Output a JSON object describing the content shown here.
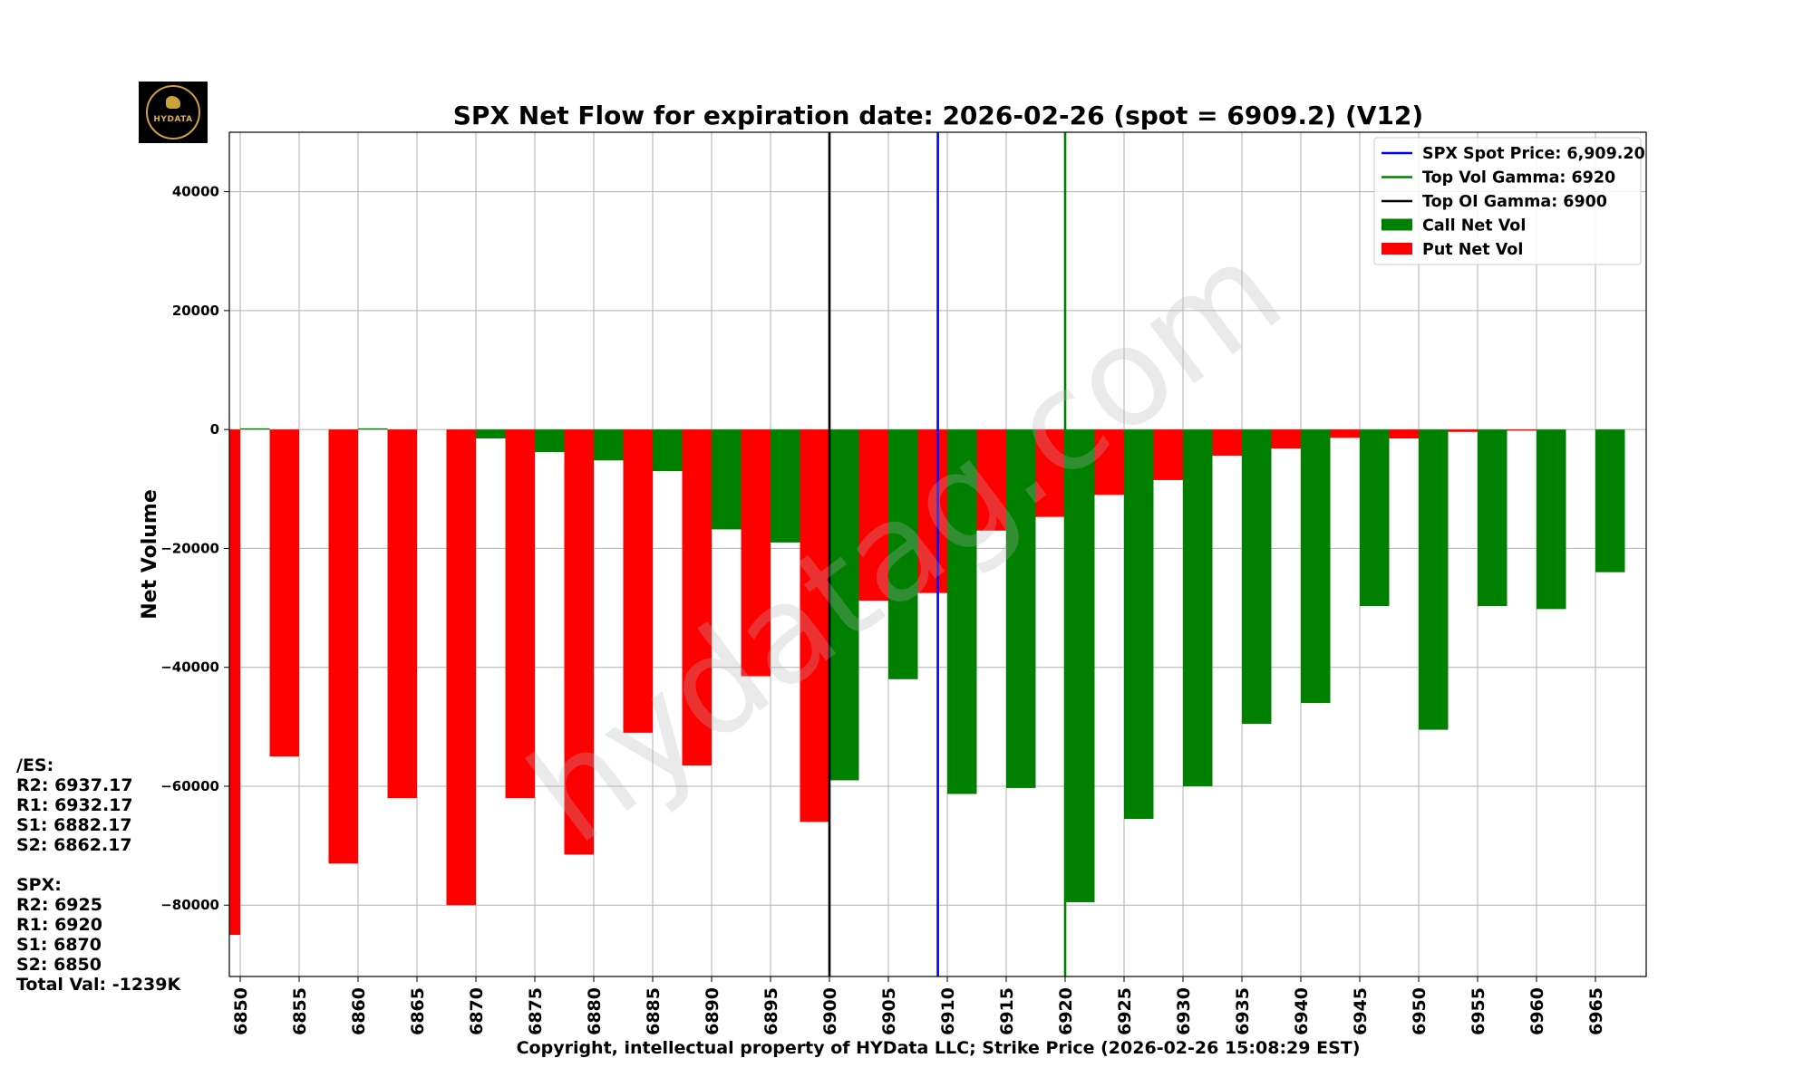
{
  "chart_data": {
    "type": "bar",
    "title": "SPX Net Flow for expiration date: 2026-02-26 (spot = 6909.2) (V12)",
    "xlabel": "Copyright, intellectual property of HYData LLC; Strike Price (2026-02-26 15:08:29 EST)",
    "ylabel": "Net Volume",
    "ylim": [
      -92000,
      50000
    ],
    "yticks": [
      40000,
      20000,
      0,
      -20000,
      -40000,
      -60000,
      -80000
    ],
    "ytick_labels": [
      "40000",
      "20000",
      "0",
      "−20000",
      "−40000",
      "−60000",
      "−80000"
    ],
    "categories": [
      "6850",
      "6855",
      "6860",
      "6865",
      "6870",
      "6875",
      "6880",
      "6885",
      "6890",
      "6895",
      "6900",
      "6905",
      "6910",
      "6915",
      "6920",
      "6925",
      "6930",
      "6935",
      "6940",
      "6945",
      "6950",
      "6955",
      "6960",
      "6965"
    ],
    "series": [
      {
        "name": "Put Net Vol",
        "color": "#ff0000",
        "values": [
          -85000,
          -55000,
          -73000,
          -62000,
          -80000,
          -62000,
          -71500,
          -51000,
          -56500,
          -41500,
          -66000,
          -28800,
          -27500,
          -17000,
          -14700,
          -11000,
          -8500,
          -4400,
          -3200,
          -1400,
          -1500,
          -400,
          -200,
          0
        ]
      },
      {
        "name": "Call Net Vol",
        "color": "#008000",
        "values": [
          200,
          0,
          200,
          0,
          -1500,
          -3800,
          -5200,
          -7000,
          -16800,
          -19000,
          -59000,
          -42000,
          -61300,
          -60300,
          -79500,
          -65500,
          -60000,
          -49500,
          -46000,
          -29700,
          -50500,
          -29700,
          -30200,
          -24000
        ]
      }
    ],
    "vlines": [
      {
        "label": "SPX Spot Price: 6,909.20",
        "value": 6909.2,
        "color": "#0000ff"
      },
      {
        "label": "Top Vol Gamma: 6920",
        "value": 6920,
        "color": "#008000"
      },
      {
        "label": "Top OI Gamma: 6900",
        "value": 6900,
        "color": "#000000"
      }
    ],
    "legend": {
      "position": "top-right",
      "entries": [
        {
          "label": "SPX Spot Price: 6,909.20",
          "kind": "line",
          "color": "#0000ff"
        },
        {
          "label": "Top Vol Gamma: 6920",
          "kind": "line",
          "color": "#008000"
        },
        {
          "label": "Top OI Gamma: 6900",
          "kind": "line",
          "color": "#000000"
        },
        {
          "label": "Call Net Vol",
          "kind": "patch",
          "color": "#008000"
        },
        {
          "label": "Put Net Vol",
          "kind": "patch",
          "color": "#ff0000"
        }
      ]
    },
    "watermark": "hydatag.com",
    "grid": true
  },
  "logo": {
    "text": "HYDATA"
  },
  "levels": {
    "es_header": "/ES:",
    "es_lines": [
      "R2: 6937.17",
      "R1: 6932.17",
      "S1: 6882.17",
      "S2: 6862.17"
    ],
    "spx_header": "SPX:",
    "spx_lines": [
      "R2: 6925",
      "R1: 6920",
      "S1: 6870",
      "S2: 6850"
    ],
    "total": "Total Val: -1239K"
  }
}
